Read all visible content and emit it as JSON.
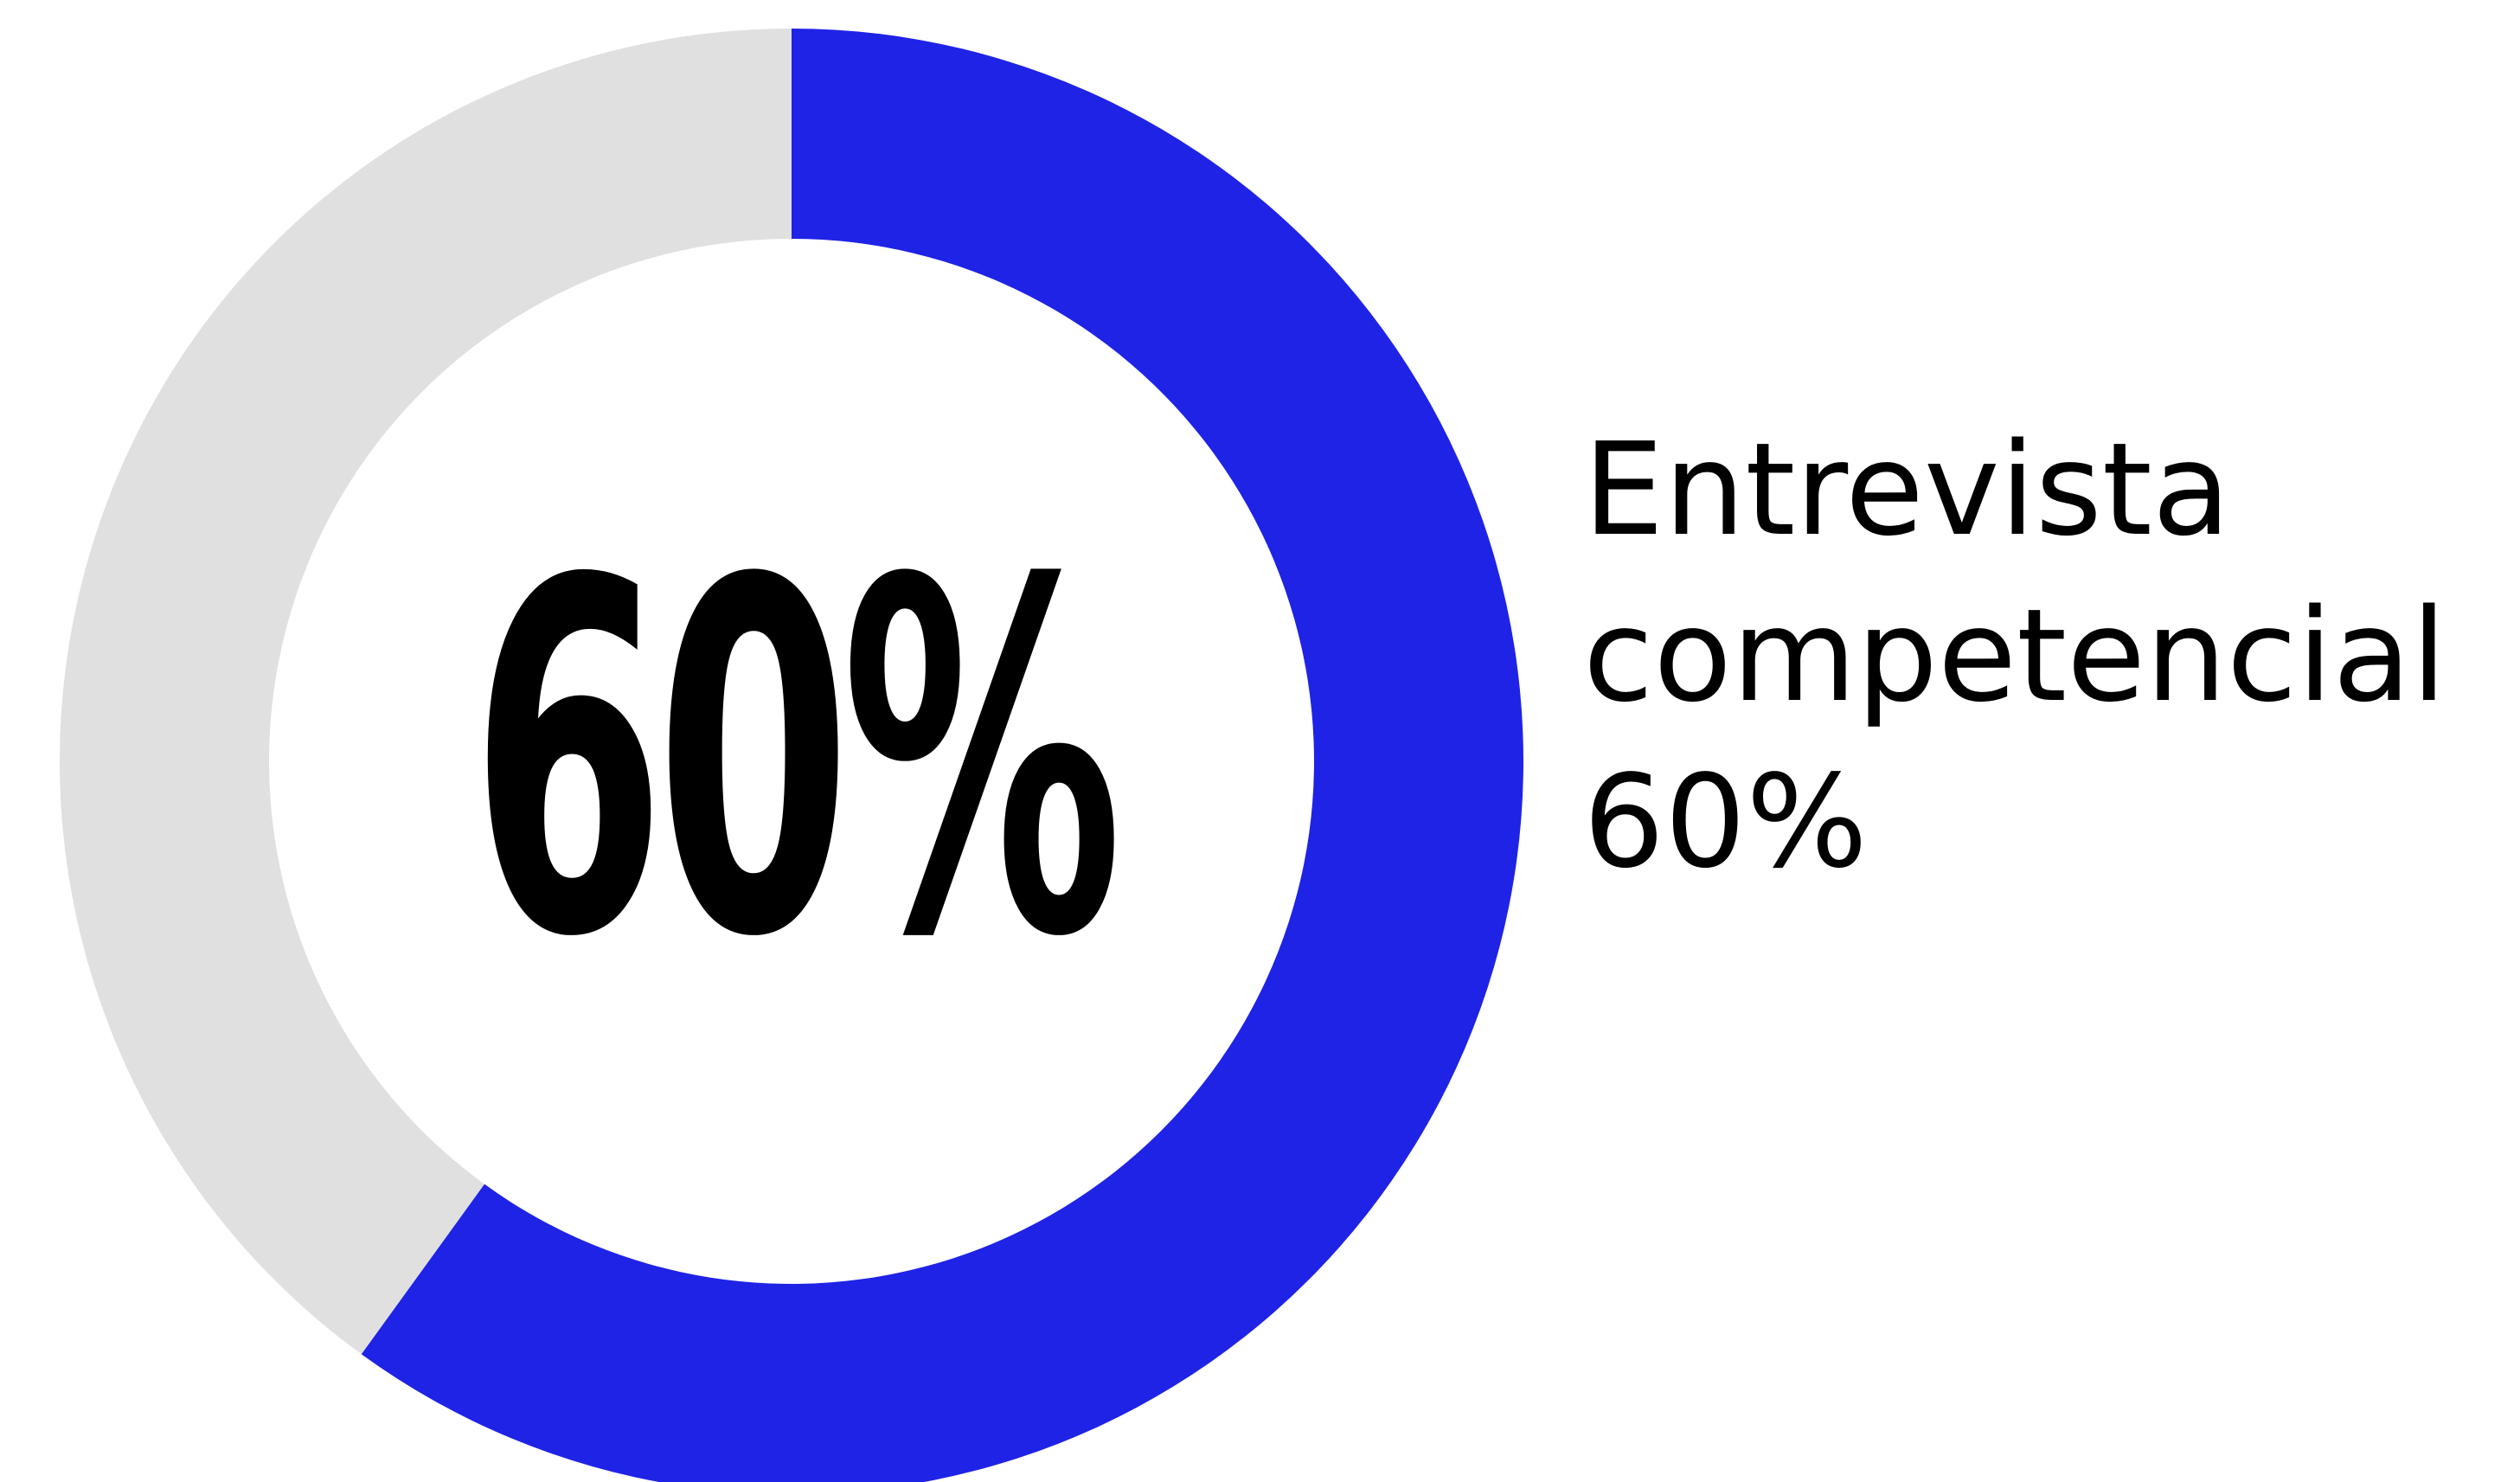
{
  "chart_data": {
    "type": "pie",
    "variant": "donut",
    "center_text": "60%",
    "slices": [
      {
        "label": "Entrevista competencial",
        "value": 60,
        "color": "#1f23e6"
      },
      {
        "label": "",
        "value": 40,
        "color": "#e0e0e0"
      }
    ],
    "legend_placement": "right"
  },
  "legend": {
    "line1": "Entrevista",
    "line2": "competencial",
    "line3": "60%"
  }
}
